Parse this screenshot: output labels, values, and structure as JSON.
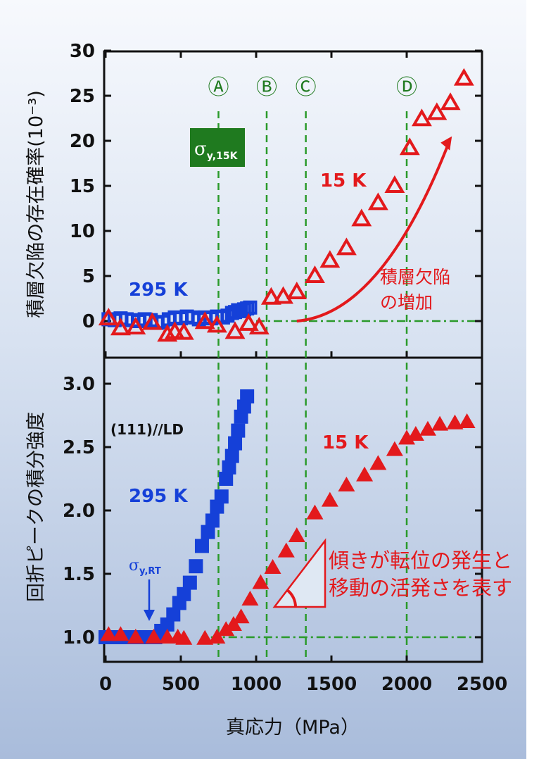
{
  "colors": {
    "red": "#e3191c",
    "blue": "#1540d8",
    "green": "#1f7a1f",
    "green_dash": "#2a9a2a"
  },
  "x_axis": {
    "label": "真応力（MPa）",
    "ticks": [
      "0",
      "500",
      "1000",
      "1500",
      "2000",
      "2500"
    ]
  },
  "markers": [
    {
      "label": "Ⓐ",
      "x": 750
    },
    {
      "label": "Ⓑ",
      "x": 1070
    },
    {
      "label": "Ⓒ",
      "x": 1330
    },
    {
      "label": "Ⓓ",
      "x": 2000
    }
  ],
  "top_panel": {
    "ylabel": "積層欠陥の存在確率(10⁻³)",
    "yticks": [
      "0",
      "5",
      "10",
      "15",
      "20",
      "25",
      "30"
    ],
    "sigma_box": {
      "main": "σ",
      "sub": "y,15K"
    },
    "label_15k": "15 K",
    "label_295k": "295 K",
    "annotation_line1": "積層欠陥",
    "annotation_line2": "の増加"
  },
  "bottom_panel": {
    "ylabel": "回折ピークの積分強度",
    "yticks": [
      "1.0",
      "1.5",
      "2.0",
      "2.5",
      "3.0"
    ],
    "orientation": "(111)//LD",
    "label_15k": "15 K",
    "label_295k": "295 K",
    "sigma_rt": {
      "main": "σ",
      "sub": "y,RT"
    },
    "annotation_line1": "傾きが転位の発生と",
    "annotation_line2": "移動の活発さを表す"
  },
  "chart_data": [
    {
      "type": "scatter",
      "panel": "top",
      "xlim": [
        0,
        2500
      ],
      "ylim": [
        -3,
        30
      ],
      "series": [
        {
          "name": "295 K",
          "marker": "open-square",
          "color": "#1540d8",
          "points": [
            [
              20,
              0.2
            ],
            [
              60,
              0.1
            ],
            [
              100,
              0.3
            ],
            [
              140,
              0.2
            ],
            [
              180,
              0.1
            ],
            [
              220,
              0.0
            ],
            [
              260,
              0.2
            ],
            [
              300,
              0.1
            ],
            [
              340,
              -0.2
            ],
            [
              380,
              -0.1
            ],
            [
              420,
              0.2
            ],
            [
              460,
              0.4
            ],
            [
              500,
              0.3
            ],
            [
              540,
              0.5
            ],
            [
              580,
              0.4
            ],
            [
              620,
              0.2
            ],
            [
              660,
              0.4
            ],
            [
              700,
              0.3
            ],
            [
              740,
              0.5
            ],
            [
              780,
              0.4
            ],
            [
              810,
              0.6
            ],
            [
              840,
              0.9
            ],
            [
              860,
              1.0
            ],
            [
              880,
              1.2
            ],
            [
              900,
              1.1
            ],
            [
              920,
              1.3
            ],
            [
              940,
              1.4
            ],
            [
              960,
              1.5
            ]
          ]
        },
        {
          "name": "15 K",
          "marker": "open-triangle",
          "color": "#e3191c",
          "points": [
            [
              20,
              0.3
            ],
            [
              100,
              -0.8
            ],
            [
              200,
              -0.7
            ],
            [
              310,
              -0.2
            ],
            [
              410,
              -1.5
            ],
            [
              460,
              -1.2
            ],
            [
              520,
              -1.3
            ],
            [
              660,
              -0.1
            ],
            [
              740,
              -0.5
            ],
            [
              860,
              -1.2
            ],
            [
              950,
              -0.3
            ],
            [
              1020,
              -0.7
            ],
            [
              1100,
              2.6
            ],
            [
              1180,
              2.7
            ],
            [
              1270,
              3.2
            ],
            [
              1390,
              5.0
            ],
            [
              1490,
              6.7
            ],
            [
              1600,
              8.1
            ],
            [
              1700,
              11.3
            ],
            [
              1810,
              13.1
            ],
            [
              1920,
              15.0
            ],
            [
              2020,
              19.2
            ],
            [
              2100,
              22.4
            ],
            [
              2200,
              23.1
            ],
            [
              2290,
              24.2
            ],
            [
              2380,
              26.9
            ]
          ]
        }
      ],
      "arrow": {
        "from": [
          1270,
          0
        ],
        "to": [
          2300,
          20.5
        ]
      },
      "reference_line_y": 0
    },
    {
      "type": "scatter",
      "panel": "bottom",
      "xlim": [
        0,
        2500
      ],
      "ylim": [
        0.8,
        3.3
      ],
      "series": [
        {
          "name": "295 K",
          "marker": "filled-square",
          "color": "#1540d8",
          "points": [
            [
              0,
              1.0
            ],
            [
              40,
              1.0
            ],
            [
              80,
              1.0
            ],
            [
              120,
              1.0
            ],
            [
              160,
              1.0
            ],
            [
              200,
              1.0
            ],
            [
              240,
              1.0
            ],
            [
              280,
              1.0
            ],
            [
              330,
              1.0
            ],
            [
              370,
              1.05
            ],
            [
              410,
              1.1
            ],
            [
              450,
              1.18
            ],
            [
              490,
              1.27
            ],
            [
              520,
              1.34
            ],
            [
              560,
              1.43
            ],
            [
              600,
              1.56
            ],
            [
              640,
              1.72
            ],
            [
              680,
              1.83
            ],
            [
              710,
              1.92
            ],
            [
              740,
              2.03
            ],
            [
              770,
              2.11
            ],
            [
              800,
              2.25
            ],
            [
              820,
              2.34
            ],
            [
              840,
              2.43
            ],
            [
              860,
              2.53
            ],
            [
              880,
              2.63
            ],
            [
              900,
              2.74
            ],
            [
              920,
              2.82
            ],
            [
              940,
              2.9
            ]
          ]
        },
        {
          "name": "15 K",
          "marker": "filled-triangle",
          "color": "#e3191c",
          "points": [
            [
              20,
              1.02
            ],
            [
              100,
              1.02
            ],
            [
              200,
              1.0
            ],
            [
              320,
              1.0
            ],
            [
              410,
              1.0
            ],
            [
              480,
              1.0
            ],
            [
              520,
              0.99
            ],
            [
              660,
              0.99
            ],
            [
              740,
              1.0
            ],
            [
              800,
              1.06
            ],
            [
              850,
              1.1
            ],
            [
              900,
              1.16
            ],
            [
              960,
              1.3
            ],
            [
              1030,
              1.43
            ],
            [
              1110,
              1.55
            ],
            [
              1200,
              1.68
            ],
            [
              1270,
              1.8
            ],
            [
              1390,
              1.98
            ],
            [
              1490,
              2.08
            ],
            [
              1600,
              2.2
            ],
            [
              1720,
              2.28
            ],
            [
              1810,
              2.37
            ],
            [
              1920,
              2.48
            ],
            [
              2000,
              2.57
            ],
            [
              2060,
              2.6
            ],
            [
              2140,
              2.64
            ],
            [
              2220,
              2.68
            ],
            [
              2320,
              2.69
            ],
            [
              2400,
              2.7
            ]
          ]
        }
      ],
      "reference_line_y": 1.0
    }
  ]
}
